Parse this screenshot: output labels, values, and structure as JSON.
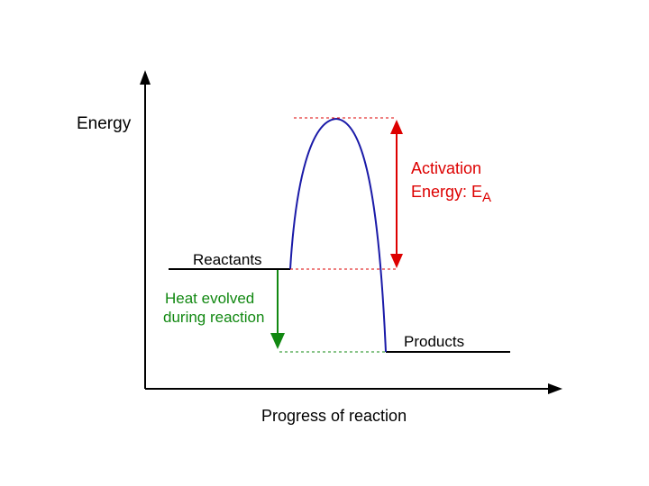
{
  "diagram": {
    "axes": {
      "y_label": "Energy",
      "x_label": "Progress of reaction"
    },
    "labels": {
      "reactants": "Reactants",
      "products": "Products",
      "activation_line1": "Activation",
      "activation_line2_prefix": "Energy:  E",
      "activation_subscript": "A",
      "heat_line1": "Heat evolved",
      "heat_line2": "during reaction"
    },
    "colors": {
      "axis": "#000000",
      "curve": "#1a1aa8",
      "activation": "#dd0000",
      "heat": "#118811",
      "levels": "#000000"
    }
  }
}
